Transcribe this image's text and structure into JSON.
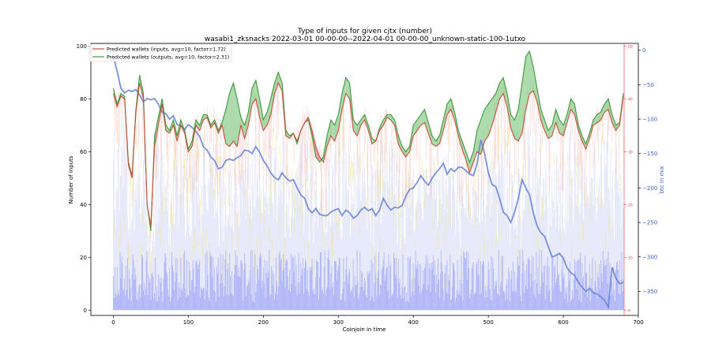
{
  "chart_data": {
    "type": "line",
    "title": "Type of inputs for given cjtx (number)",
    "subtitle": "wasabi1_zksnacks 2022-03-01 00-00-00--2022-04-01 00-00-00_unknown-static-100-1utxo",
    "xlabel": "Coinjoin in time",
    "ylabel": "Number of inputs",
    "ylabel_right": "btc in mix",
    "xlim": [
      -30,
      700
    ],
    "ylim": [
      -2,
      101
    ],
    "y2lim": [
      -385,
      10
    ],
    "x_ticks": [
      0,
      100,
      200,
      300,
      400,
      500,
      600,
      700
    ],
    "y_ticks": [
      0,
      20,
      40,
      60,
      80,
      100
    ],
    "y2_ticks": [
      0,
      -50,
      -100,
      -150,
      -200,
      -250,
      -300,
      -350
    ],
    "y2_tick_labels": [
      "0",
      "−50",
      "−100",
      "−150",
      "−200",
      "−250",
      "−300",
      "−350"
    ],
    "y3_ticks": [
      50,
      40,
      30,
      20,
      10,
      0
    ],
    "legend": {
      "placement": "upper-left",
      "entries": [
        "Predicted wallets (inputs, avg=10, factor=1.72)",
        "Predicted wallets (outputs, avg=10, factor=2.31)"
      ]
    },
    "colors": {
      "inputs_line": "#c8503c",
      "outputs_line": "#3c9a3c",
      "fill_outputs_higher": "#5cb85c",
      "fill_inputs_higher": "#e84040",
      "btc_line": "#6a86d8",
      "bars_blue": "#9aa2f4",
      "bars_yellow": "#f7e28e",
      "bars_pink": "#f2b6ac",
      "bars_lavender": "#d4d8f6",
      "right_axis_red": "#e03b3b",
      "right_axis_blue": "#3a5fcd"
    },
    "series": [
      {
        "name": "Predicted wallets (inputs, avg=10, factor=1.72)",
        "x": [
          0,
          5,
          10,
          15,
          20,
          25,
          30,
          35,
          40,
          45,
          50,
          55,
          60,
          65,
          70,
          75,
          80,
          85,
          90,
          95,
          100,
          105,
          110,
          115,
          120,
          125,
          130,
          135,
          140,
          145,
          150,
          155,
          160,
          165,
          170,
          175,
          180,
          185,
          190,
          195,
          200,
          205,
          210,
          215,
          220,
          225,
          230,
          235,
          240,
          245,
          250,
          255,
          260,
          265,
          270,
          275,
          280,
          285,
          290,
          295,
          300,
          305,
          310,
          315,
          320,
          325,
          330,
          335,
          340,
          345,
          350,
          355,
          360,
          365,
          370,
          375,
          380,
          385,
          390,
          395,
          400,
          405,
          410,
          415,
          420,
          425,
          430,
          435,
          440,
          445,
          450,
          455,
          460,
          465,
          470,
          475,
          480,
          485,
          490,
          495,
          500,
          505,
          510,
          515,
          520,
          525,
          530,
          535,
          540,
          545,
          550,
          555,
          560,
          565,
          570,
          575,
          580,
          585,
          590,
          595,
          600,
          605,
          610,
          615,
          620,
          625,
          630,
          635,
          640,
          645,
          650,
          655,
          660,
          665,
          670,
          675,
          680
        ],
        "values": [
          82,
          77,
          81,
          80,
          55,
          50,
          75,
          86,
          80,
          40,
          32,
          62,
          70,
          78,
          68,
          67,
          70,
          64,
          70,
          67,
          60,
          62,
          70,
          68,
          72,
          73,
          69,
          71,
          67,
          70,
          63,
          62,
          64,
          62,
          70,
          65,
          70,
          78,
          80,
          73,
          68,
          70,
          74,
          82,
          86,
          83,
          66,
          65,
          67,
          64,
          68,
          71,
          73,
          68,
          62,
          58,
          56,
          62,
          66,
          64,
          68,
          76,
          82,
          80,
          68,
          66,
          70,
          72,
          68,
          63,
          64,
          68,
          70,
          73,
          72,
          70,
          63,
          60,
          58,
          60,
          66,
          68,
          70,
          71,
          67,
          63,
          62,
          63,
          68,
          74,
          76,
          72,
          66,
          61,
          57,
          52,
          56,
          60,
          59,
          64,
          66,
          70,
          75,
          80,
          82,
          77,
          69,
          65,
          64,
          67,
          76,
          82,
          83,
          79,
          72,
          68,
          65,
          66,
          71,
          67,
          66,
          71,
          76,
          74,
          68,
          64,
          61,
          65,
          70,
          71,
          72,
          75,
          76,
          71,
          68,
          70,
          81
        ]
      },
      {
        "name": "Predicted wallets (outputs, avg=10, factor=2.31)",
        "x": [
          0,
          5,
          10,
          15,
          20,
          25,
          30,
          35,
          40,
          45,
          50,
          55,
          60,
          65,
          70,
          75,
          80,
          85,
          90,
          95,
          100,
          105,
          110,
          115,
          120,
          125,
          130,
          135,
          140,
          145,
          150,
          155,
          160,
          165,
          170,
          175,
          180,
          185,
          190,
          195,
          200,
          205,
          210,
          215,
          220,
          225,
          230,
          235,
          240,
          245,
          250,
          255,
          260,
          265,
          270,
          275,
          280,
          285,
          290,
          295,
          300,
          305,
          310,
          315,
          320,
          325,
          330,
          335,
          340,
          345,
          350,
          355,
          360,
          365,
          370,
          375,
          380,
          385,
          390,
          395,
          400,
          405,
          410,
          415,
          420,
          425,
          430,
          435,
          440,
          445,
          450,
          455,
          460,
          465,
          470,
          475,
          480,
          485,
          490,
          495,
          500,
          505,
          510,
          515,
          520,
          525,
          530,
          535,
          540,
          545,
          550,
          555,
          560,
          565,
          570,
          575,
          580,
          585,
          590,
          595,
          600,
          605,
          610,
          615,
          620,
          625,
          630,
          635,
          640,
          645,
          650,
          655,
          660,
          665,
          670,
          675,
          680
        ],
        "values": [
          84,
          78,
          82,
          81,
          56,
          51,
          76,
          89,
          82,
          40,
          30,
          66,
          73,
          80,
          70,
          68,
          72,
          66,
          72,
          68,
          61,
          64,
          72,
          70,
          74,
          74,
          70,
          72,
          68,
          71,
          76,
          82,
          86,
          80,
          73,
          70,
          75,
          84,
          87,
          80,
          72,
          75,
          80,
          86,
          90,
          86,
          68,
          66,
          67,
          63,
          68,
          71,
          72,
          66,
          58,
          56,
          58,
          66,
          72,
          70,
          74,
          82,
          88,
          86,
          72,
          70,
          72,
          74,
          70,
          65,
          64,
          69,
          72,
          74,
          74,
          72,
          66,
          62,
          60,
          62,
          70,
          72,
          74,
          76,
          71,
          66,
          64,
          66,
          72,
          78,
          80,
          75,
          68,
          64,
          60,
          56,
          60,
          68,
          72,
          76,
          78,
          80,
          82,
          86,
          88,
          82,
          74,
          72,
          76,
          86,
          96,
          98,
          92,
          84,
          76,
          72,
          68,
          70,
          76,
          72,
          70,
          74,
          80,
          78,
          70,
          66,
          63,
          67,
          72,
          74,
          75,
          78,
          80,
          74,
          70,
          71,
          82
        ]
      },
      {
        "name": "btc in mix",
        "axis": "right",
        "x": [
          0,
          5,
          10,
          15,
          20,
          25,
          30,
          35,
          40,
          45,
          50,
          55,
          60,
          65,
          70,
          75,
          80,
          85,
          90,
          95,
          100,
          105,
          110,
          115,
          120,
          125,
          130,
          135,
          140,
          145,
          150,
          155,
          160,
          165,
          170,
          175,
          180,
          185,
          190,
          195,
          200,
          205,
          210,
          215,
          220,
          225,
          230,
          235,
          240,
          245,
          250,
          255,
          260,
          265,
          270,
          275,
          280,
          285,
          290,
          295,
          300,
          305,
          310,
          315,
          320,
          325,
          330,
          335,
          340,
          345,
          350,
          355,
          360,
          365,
          370,
          375,
          380,
          385,
          390,
          395,
          400,
          405,
          410,
          415,
          420,
          425,
          430,
          435,
          440,
          445,
          450,
          455,
          460,
          465,
          470,
          475,
          480,
          485,
          490,
          495,
          500,
          505,
          510,
          515,
          520,
          525,
          530,
          535,
          540,
          545,
          550,
          555,
          560,
          565,
          570,
          575,
          580,
          585,
          590,
          595,
          600,
          605,
          610,
          615,
          620,
          625,
          630,
          635,
          640,
          645,
          650,
          655,
          660,
          665,
          670,
          675,
          680
        ],
        "values": [
          -10,
          -30,
          -55,
          -62,
          -58,
          -60,
          -57,
          -65,
          -75,
          -70,
          -72,
          -70,
          -78,
          -90,
          -92,
          -100,
          -95,
          -108,
          -110,
          -115,
          -108,
          -112,
          -118,
          -125,
          -140,
          -145,
          -155,
          -160,
          -172,
          -170,
          -160,
          -158,
          -160,
          -156,
          -153,
          -145,
          -146,
          -150,
          -140,
          -148,
          -160,
          -168,
          -178,
          -185,
          -188,
          -178,
          -185,
          -190,
          -188,
          -200,
          -210,
          -215,
          -230,
          -236,
          -230,
          -238,
          -240,
          -240,
          -235,
          -232,
          -230,
          -240,
          -232,
          -236,
          -244,
          -240,
          -232,
          -228,
          -233,
          -230,
          -240,
          -232,
          -215,
          -225,
          -232,
          -228,
          -229,
          -225,
          -212,
          -202,
          -200,
          -192,
          -182,
          -190,
          -196,
          -186,
          -178,
          -172,
          -164,
          -180,
          -172,
          -176,
          -170,
          -170,
          -175,
          -180,
          -182,
          -165,
          -130,
          -150,
          -178,
          -195,
          -198,
          -215,
          -235,
          -240,
          -250,
          -235,
          -215,
          -188,
          -200,
          -210,
          -236,
          -255,
          -265,
          -270,
          -285,
          -300,
          -298,
          -295,
          -302,
          -316,
          -323,
          -327,
          -337,
          -344,
          -350,
          -346,
          -352,
          -354,
          -358,
          -363,
          -373,
          -315,
          -331,
          -339,
          -337
        ]
      }
    ]
  }
}
